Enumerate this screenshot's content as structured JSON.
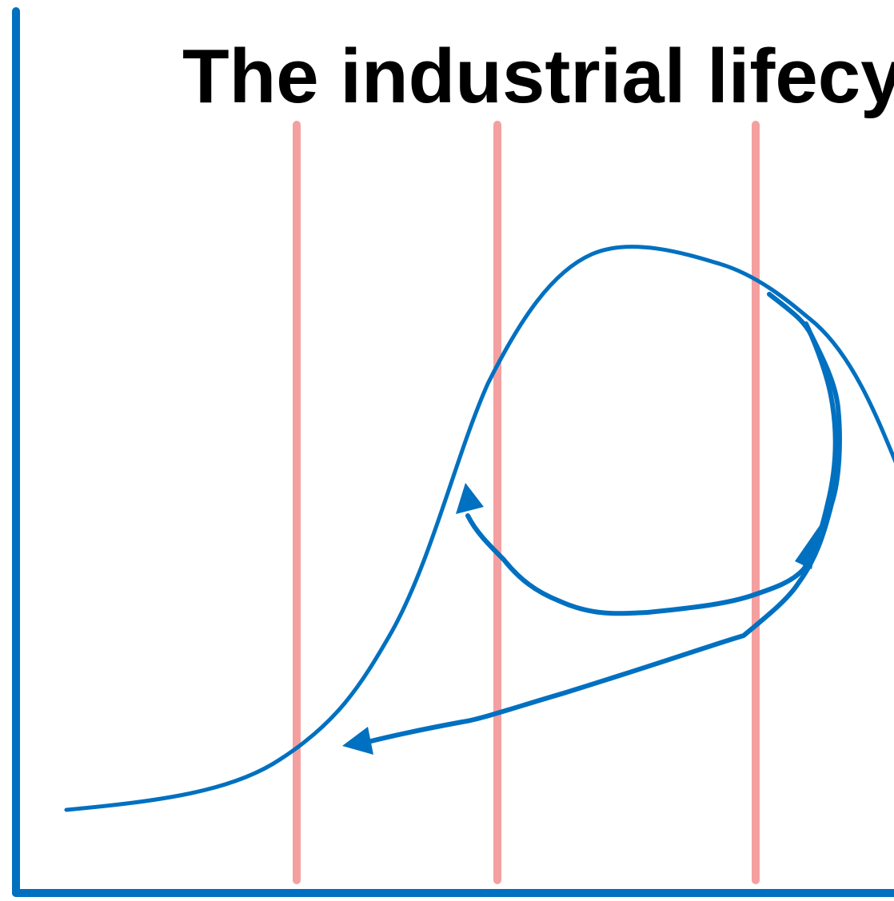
{
  "title": "The industrial lifecycle"
}
